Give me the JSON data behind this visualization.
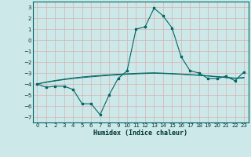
{
  "title": "",
  "xlabel": "Humidex (Indice chaleur)",
  "ylabel": "",
  "background_color": "#cce8e8",
  "grid_color": "#c8dada",
  "line_color": "#006666",
  "x_data": [
    0,
    1,
    2,
    3,
    4,
    5,
    6,
    7,
    8,
    9,
    10,
    11,
    12,
    13,
    14,
    15,
    16,
    17,
    18,
    19,
    20,
    21,
    22,
    23
  ],
  "y_main": [
    -4.0,
    -4.3,
    -4.2,
    -4.2,
    -4.5,
    -5.8,
    -5.8,
    -6.8,
    -5.0,
    -3.5,
    -2.8,
    1.0,
    1.2,
    2.9,
    2.2,
    1.1,
    -1.5,
    -2.8,
    -3.0,
    -3.5,
    -3.5,
    -3.3,
    -3.7,
    -2.9
  ],
  "y_trend1": [
    -4.0,
    -3.85,
    -3.72,
    -3.6,
    -3.5,
    -3.42,
    -3.35,
    -3.28,
    -3.22,
    -3.17,
    -3.12,
    -3.08,
    -3.05,
    -3.02,
    -3.05,
    -3.08,
    -3.12,
    -3.17,
    -3.22,
    -3.28,
    -3.35,
    -3.42,
    -3.5,
    -3.45
  ],
  "y_trend2": [
    -4.0,
    -3.82,
    -3.68,
    -3.56,
    -3.45,
    -3.36,
    -3.28,
    -3.22,
    -3.16,
    -3.11,
    -3.07,
    -3.03,
    -3.0,
    -2.98,
    -3.01,
    -3.05,
    -3.09,
    -3.14,
    -3.19,
    -3.25,
    -3.32,
    -3.38,
    -3.46,
    -3.4
  ],
  "ylim": [
    -7.5,
    3.5
  ],
  "xlim": [
    -0.5,
    23.5
  ],
  "yticks": [
    3,
    2,
    1,
    0,
    -1,
    -2,
    -3,
    -4,
    -5,
    -6,
    -7
  ],
  "xticks": [
    0,
    1,
    2,
    3,
    4,
    5,
    6,
    7,
    8,
    9,
    10,
    11,
    12,
    13,
    14,
    15,
    16,
    17,
    18,
    19,
    20,
    21,
    22,
    23
  ]
}
